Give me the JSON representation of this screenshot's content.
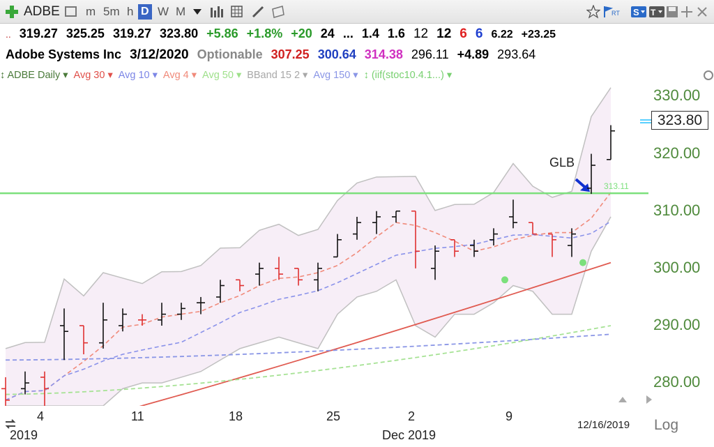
{
  "toolbar": {
    "symbol": "ADBE",
    "periods": [
      "m",
      "5m",
      "h",
      "D",
      "W",
      "M"
    ],
    "active_period": "D"
  },
  "quote": {
    "open": "319.27",
    "high": "325.25",
    "low": "319.27",
    "close": "323.80",
    "change": "+5.86",
    "change_pct": "+1.8%",
    "v1": "+20",
    "v2": "24",
    "v3": "...",
    "v4": "1.4",
    "v5": "1.6",
    "v6": "12",
    "v7": "12",
    "v8": "6",
    "v9": "6",
    "v10": "6.22",
    "v11": "+23.25"
  },
  "info": {
    "company": "Adobe Systems Inc",
    "date": "3/12/2020",
    "optionable": "Optionable",
    "p1": "307.25",
    "p2": "300.64",
    "p3": "314.38",
    "p4": "296.11",
    "p5": "+4.89",
    "p6": "293.64"
  },
  "indicators": [
    {
      "label": "ADBE Daily",
      "color": "#4a7a3a"
    },
    {
      "label": "Avg 30",
      "color": "#e0504a"
    },
    {
      "label": "Avg 10",
      "color": "#7c86e6"
    },
    {
      "label": "Avg 4",
      "color": "#f08a7a"
    },
    {
      "label": "Avg 50",
      "color": "#9ee08a"
    },
    {
      "label": "BBand 15 2",
      "color": "#a8a8a8"
    },
    {
      "label": "Avg 150",
      "color": "#8a96e6"
    },
    {
      "label": "(iif(stoc10.4.1...)",
      "color": "#78d070"
    }
  ],
  "price_labels": [
    "330.00",
    "320.00",
    "310.00",
    "300.00",
    "290.00",
    "280.00"
  ],
  "last_price": "323.80",
  "glb_label": "GLB",
  "glb_level": "313.11",
  "x_labels": [
    "4",
    "11",
    "18",
    "25",
    "2",
    "9"
  ],
  "x_sublabels": {
    "left": "2019",
    "mid": "Dec 2019"
  },
  "date_label": "12/16/2019",
  "log_label": "Log",
  "chart_data": {
    "type": "ohlc",
    "ylim": [
      276,
      332
    ],
    "bars": [
      {
        "o": 279,
        "h": 281,
        "l": 276,
        "c": 277,
        "up": false
      },
      {
        "o": 279,
        "h": 282,
        "l": 278,
        "c": 280,
        "up": true
      },
      {
        "o": 281,
        "h": 282,
        "l": 276,
        "c": 279,
        "up": false
      },
      {
        "o": 290,
        "h": 293,
        "l": 284,
        "c": 289,
        "up": true
      },
      {
        "o": 290,
        "h": 290,
        "l": 285,
        "c": 287,
        "up": false
      },
      {
        "o": 287,
        "h": 294,
        "l": 286,
        "c": 291,
        "up": true
      },
      {
        "o": 290,
        "h": 293,
        "l": 289,
        "c": 292,
        "up": true
      },
      {
        "o": 291,
        "h": 292,
        "l": 290,
        "c": 291,
        "up": false
      },
      {
        "o": 291,
        "h": 294,
        "l": 290,
        "c": 292,
        "up": true
      },
      {
        "o": 292,
        "h": 294,
        "l": 291,
        "c": 293,
        "up": true
      },
      {
        "o": 294,
        "h": 295,
        "l": 292,
        "c": 294,
        "up": true
      },
      {
        "o": 295,
        "h": 298,
        "l": 294,
        "c": 297,
        "up": true
      },
      {
        "o": 298,
        "h": 298,
        "l": 296,
        "c": 297,
        "up": false
      },
      {
        "o": 299,
        "h": 301,
        "l": 297,
        "c": 300,
        "up": true
      },
      {
        "o": 300,
        "h": 302,
        "l": 298,
        "c": 299,
        "up": false
      },
      {
        "o": 300,
        "h": 300,
        "l": 297,
        "c": 298,
        "up": false
      },
      {
        "o": 298,
        "h": 301,
        "l": 296,
        "c": 300,
        "up": true
      },
      {
        "o": 302,
        "h": 306,
        "l": 302,
        "c": 305,
        "up": true
      },
      {
        "o": 306,
        "h": 309,
        "l": 305,
        "c": 308,
        "up": true
      },
      {
        "o": 308,
        "h": 310,
        "l": 306,
        "c": 309,
        "up": true
      },
      {
        "o": 309,
        "h": 310,
        "l": 308,
        "c": 310,
        "up": true
      },
      {
        "o": 310,
        "h": 310,
        "l": 300,
        "c": 303,
        "up": false
      },
      {
        "o": 300,
        "h": 304,
        "l": 298,
        "c": 303,
        "up": true
      },
      {
        "o": 305,
        "h": 305,
        "l": 302,
        "c": 303,
        "up": false
      },
      {
        "o": 304,
        "h": 305,
        "l": 302,
        "c": 303,
        "up": true
      },
      {
        "o": 305,
        "h": 307,
        "l": 304,
        "c": 306,
        "up": true
      },
      {
        "o": 309,
        "h": 312,
        "l": 307,
        "c": 308,
        "up": true
      },
      {
        "o": 308,
        "h": 308,
        "l": 306,
        "c": 306,
        "up": false
      },
      {
        "o": 306,
        "h": 306,
        "l": 302,
        "c": 305,
        "up": false
      },
      {
        "o": 304,
        "h": 307,
        "l": 302,
        "c": 306,
        "up": true
      },
      {
        "o": 314,
        "h": 320,
        "l": 313,
        "c": 318,
        "up": true
      },
      {
        "o": 319,
        "h": 325,
        "l": 319,
        "c": 324,
        "up": true
      }
    ],
    "markers": [
      {
        "bar": 26,
        "value": 298
      },
      {
        "bar": 30,
        "value": 301
      }
    ]
  }
}
